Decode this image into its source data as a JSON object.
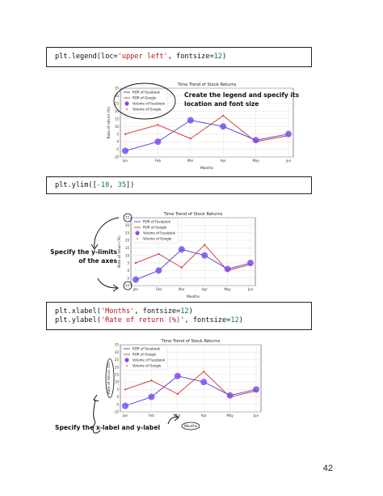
{
  "code_blocks": {
    "legend": {
      "fn": "plt.legend(loc=",
      "loc": "'upper left'",
      "mid": ", fontsize=",
      "size": "12",
      "end": ")"
    },
    "ylim": {
      "fn": "plt.ylim([",
      "low": "-10",
      "sep": ", ",
      "high": "35",
      "end": "])"
    },
    "labels": {
      "x_fn": "plt.xlabel(",
      "x_text": "'Months'",
      "x_mid": ", fontsize=",
      "x_size": "12",
      "x_end": ")",
      "y_fn": "plt.ylabel(",
      "y_text": "'Rate of return (%)'",
      "y_mid": ", fontsize=",
      "y_size": "12",
      "y_end": ")"
    }
  },
  "annotations": {
    "legend_note": [
      "Create the legend and specify its",
      "location and font size"
    ],
    "ylim_note": [
      "Specify the y-limits",
      "of the axes"
    ],
    "labels_note": "Specify the x-label and y-label"
  },
  "page_number": "42",
  "colors": {
    "facebook_line": "#3f3fd8",
    "google_line": "#d8282c",
    "facebook_volume": "#7a50f0",
    "google_volume": "#e23a3a"
  },
  "chart_data": [
    {
      "type": "line",
      "title": "Time Trend of Stock Returns",
      "categories": [
        "Jan",
        "Feb",
        "Mar",
        "Apr",
        "May",
        "Jun"
      ],
      "series": [
        {
          "name": "ROR of Facebook",
          "values": [
            -6,
            0,
            14,
            10,
            1,
            5
          ]
        },
        {
          "name": "ROR of Google",
          "values": [
            5,
            11,
            2,
            17,
            0,
            4
          ]
        },
        {
          "name": "Volume of Facebook",
          "values": [
            -6,
            0,
            14,
            10,
            1,
            5
          ]
        },
        {
          "name": "Volume of Google",
          "values": [
            5,
            11,
            2,
            17,
            0,
            4
          ]
        }
      ],
      "xlabel": "Months",
      "ylabel": "Rate of return (%)",
      "ylim": [
        -10,
        35
      ],
      "yticks": [
        "-10",
        "-5",
        "0",
        "5",
        "10",
        "15",
        "20",
        "25",
        "30",
        "35"
      ],
      "grid": true,
      "legend": "upper-left"
    },
    {
      "type": "line",
      "title": "Time Trend of Stock Returns",
      "categories": [
        "Jan",
        "Feb",
        "Mar",
        "Apr",
        "May",
        "Jun"
      ],
      "series": [
        {
          "name": "ROR of Facebook",
          "values": [
            -6,
            0,
            14,
            10,
            1,
            5
          ]
        },
        {
          "name": "ROR of Google",
          "values": [
            5,
            11,
            2,
            17,
            0,
            4
          ]
        },
        {
          "name": "Volume of Facebook",
          "values": [
            -6,
            0,
            14,
            10,
            1,
            5
          ]
        },
        {
          "name": "Volume of Google",
          "values": [
            5,
            11,
            2,
            17,
            0,
            4
          ]
        }
      ],
      "xlabel": "Months",
      "ylabel": "Rate of return (%)",
      "ylim": [
        -10,
        35
      ],
      "yticks": [
        "-10",
        "-5",
        "0",
        "5",
        "10",
        "15",
        "20",
        "25",
        "30",
        "35"
      ],
      "grid": true,
      "legend": "upper-left"
    },
    {
      "type": "line",
      "title": "Time Trend of Stock Returns",
      "categories": [
        "Jan",
        "Feb",
        "Mar",
        "Apr",
        "May",
        "Jun"
      ],
      "series": [
        {
          "name": "ROR of Facebook",
          "values": [
            -6,
            0,
            14,
            10,
            1,
            5
          ]
        },
        {
          "name": "ROR of Google",
          "values": [
            5,
            11,
            2,
            17,
            0,
            4
          ]
        },
        {
          "name": "Volume of Facebook",
          "values": [
            -6,
            0,
            14,
            10,
            1,
            5
          ]
        },
        {
          "name": "Volume of Google",
          "values": [
            5,
            11,
            2,
            17,
            0,
            4
          ]
        }
      ],
      "xlabel": "Months",
      "ylabel": "Rate of return (%)",
      "ylim": [
        -10,
        35
      ],
      "yticks": [
        "-10",
        "-5",
        "0",
        "5",
        "10",
        "15",
        "20",
        "25",
        "30",
        "35"
      ],
      "grid": true,
      "legend": "upper-left"
    }
  ]
}
